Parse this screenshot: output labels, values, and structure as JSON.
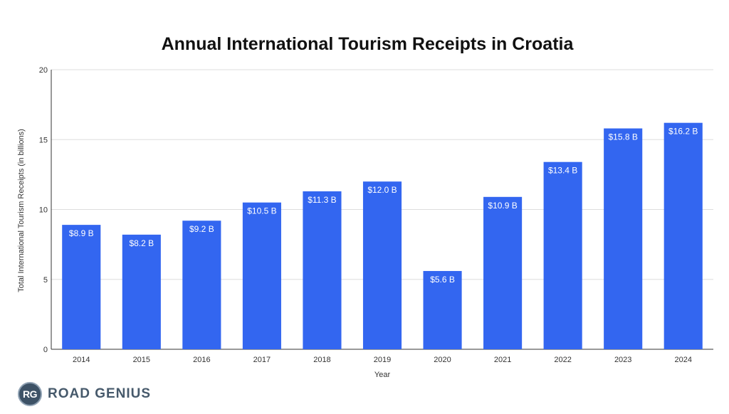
{
  "chart_data": {
    "type": "bar",
    "title": "Annual International Tourism Receipts in Croatia",
    "xlabel": "Year",
    "ylabel": "Total International Tourism Receipts (in billions)",
    "categories": [
      "2014",
      "2015",
      "2016",
      "2017",
      "2018",
      "2019",
      "2020",
      "2021",
      "2022",
      "2023",
      "2024"
    ],
    "values": [
      8.9,
      8.2,
      9.2,
      10.5,
      11.3,
      12.0,
      5.6,
      10.9,
      13.4,
      15.8,
      16.2
    ],
    "data_labels": [
      "$8.9 B",
      "$8.2 B",
      "$9.2 B",
      "$10.5 B",
      "$11.3 B",
      "$12.0 B",
      "$5.6 B",
      "$10.9 B",
      "$13.4 B",
      "$15.8 B",
      "$16.2 B"
    ],
    "yticks": [
      "0",
      "5",
      "10",
      "15",
      "20"
    ],
    "ylim": [
      0,
      20
    ],
    "grid": true,
    "legend": "none",
    "bar_color": "#3366f0"
  },
  "logo": {
    "badge": "RG",
    "text": "ROAD GENIUS"
  }
}
